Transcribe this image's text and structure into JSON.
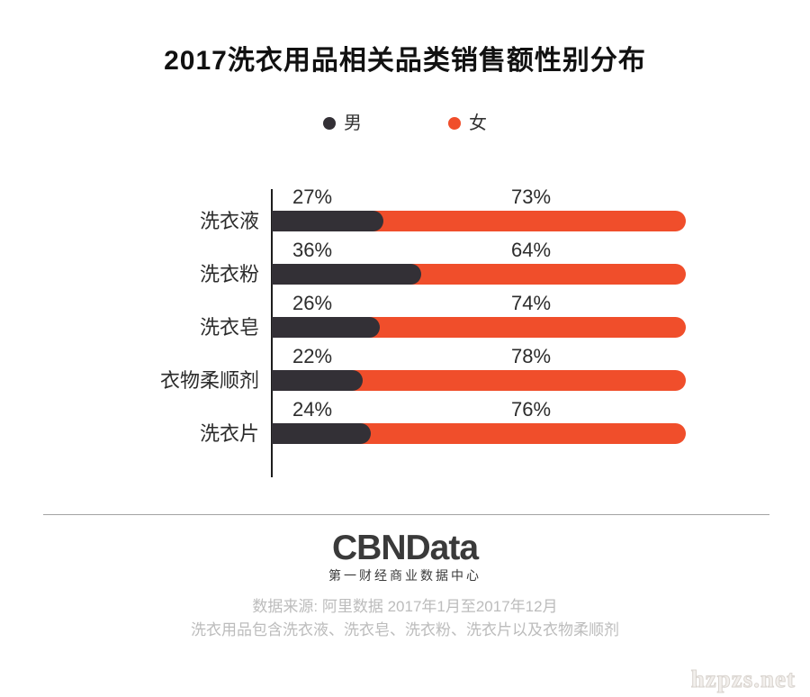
{
  "title": "2017洗衣用品相关品类销售额性别分布",
  "legend": {
    "male": "男",
    "female": "女"
  },
  "colors": {
    "male_bar": "#333036",
    "female_bar": "#F04E2B",
    "axis": "#1d1d1d",
    "muted_text": "#bcbcbc",
    "logo_text": "#3a3a3a"
  },
  "chart_data": {
    "type": "bar",
    "subtype": "horizontal-stacked-100percent",
    "orientation": "horizontal",
    "title": "2017洗衣用品相关品类销售额性别分布",
    "unit": "%",
    "xlim": [
      0,
      100
    ],
    "grid": false,
    "legend_position": "top",
    "categories": [
      "洗衣液",
      "洗衣粉",
      "洗衣皂",
      "衣物柔顺剂",
      "洗衣片"
    ],
    "series": [
      {
        "name": "男",
        "color": "#333036",
        "values": [
          27,
          36,
          26,
          22,
          24
        ]
      },
      {
        "name": "女",
        "color": "#F04E2B",
        "values": [
          73,
          64,
          74,
          78,
          76
        ]
      }
    ],
    "value_labels": {
      "male": [
        "27%",
        "36%",
        "26%",
        "22%",
        "24%"
      ],
      "female": [
        "73%",
        "64%",
        "74%",
        "78%",
        "76%"
      ]
    }
  },
  "footer": {
    "logo": "CBNData",
    "logo_subtitle": "第一财经商业数据中心",
    "source_line1": "数据来源: 阿里数据   2017年1月至2017年12月",
    "source_line2": "洗衣用品包含洗衣液、洗衣皂、洗衣粉、洗衣片以及衣物柔顺剂"
  },
  "watermark": "hzpzs.net"
}
